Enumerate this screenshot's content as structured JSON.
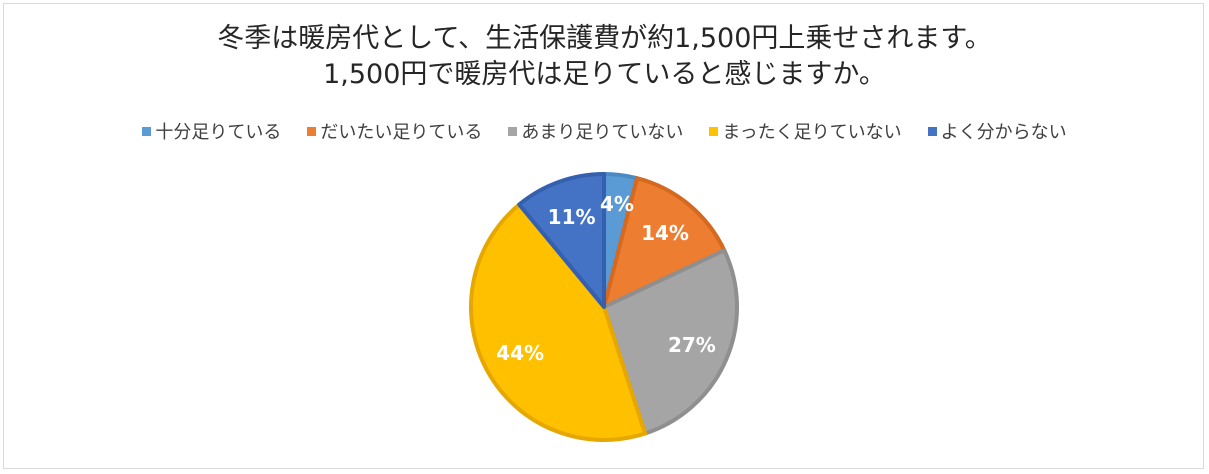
{
  "chart_data": {
    "type": "pie",
    "title": "冬季は暖房代として、生活保護費が約1,500円上乗せされます。",
    "subtitle": "1,500円で暖房代は足りていると感じますか。",
    "legend_position": "top",
    "categories": [
      "十分足りている",
      "だいたい足りている",
      "あまり足りていない",
      "まったく足りていない",
      "よく分からない"
    ],
    "values": [
      4,
      14,
      27,
      44,
      11
    ],
    "data_labels": [
      "4%",
      "14%",
      "27%",
      "44%",
      "11%"
    ],
    "colors": [
      "#5b9bd5",
      "#ed7d31",
      "#a5a5a5",
      "#ffc000",
      "#4472c4"
    ],
    "border_colors": [
      "#4a8bc6",
      "#d4691f",
      "#8f8f8f",
      "#e6a800",
      "#3560b0"
    ]
  }
}
